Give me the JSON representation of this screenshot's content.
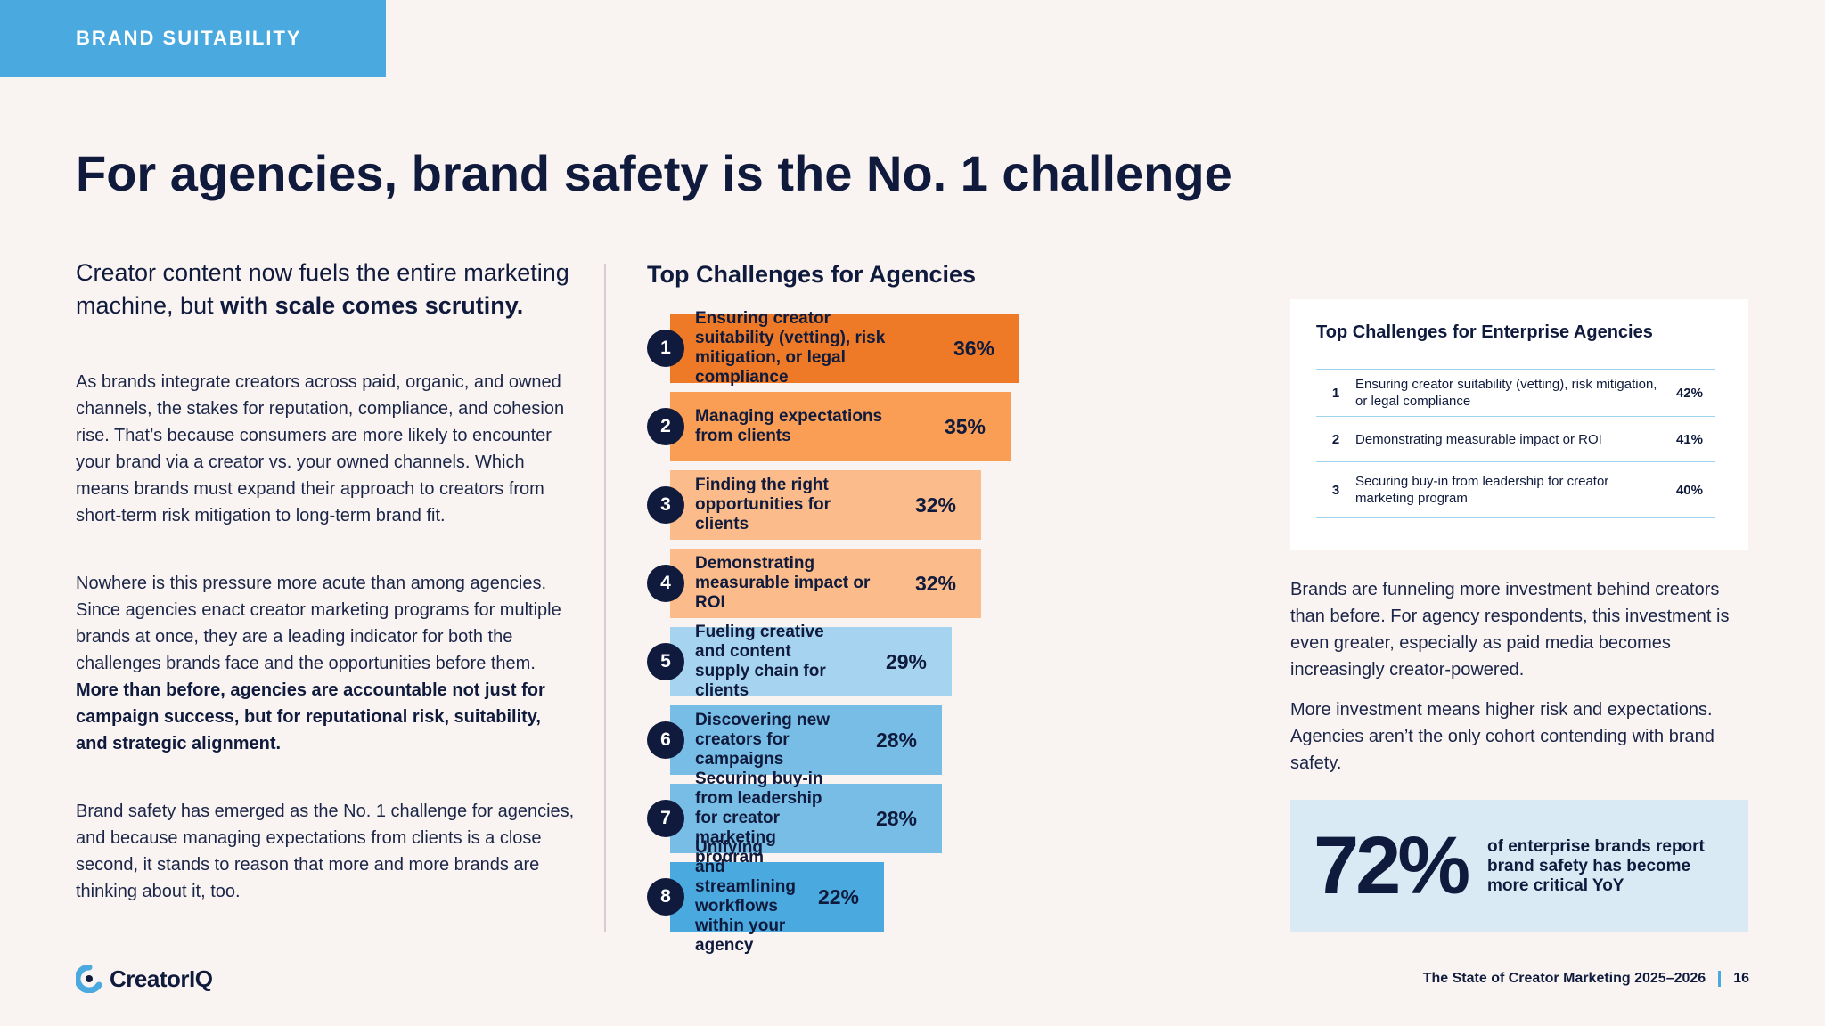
{
  "header": {
    "tag": "BRAND SUITABILITY",
    "title": "For agencies, brand safety is the No. 1 challenge"
  },
  "left": {
    "intro_plain": "Creator content now fuels the entire marketing machine, but ",
    "intro_bold": "with scale comes scrutiny.",
    "para1": "As brands integrate creators across paid, organic, and owned channels, the stakes for reputation, compliance, and cohesion rise. That’s because consumers are more likely to encounter your brand via a creator vs. your owned channels. Which means brands must expand their approach to creators from short-term risk mitigation to long-term brand fit.",
    "para2_plain": "Nowhere is this pressure more acute than among agencies. Since agencies enact creator marketing programs for multiple brands at once, they are a leading indicator for both the challenges brands face and the opportunities before them. ",
    "para2_bold": "More than before, agencies are accountable not just for campaign success, but for reputational risk, suitability, and strategic alignment.",
    "para3": "Brand safety has emerged as the No. 1 challenge for agencies, and because managing expectations from clients is a close second, it stands to reason that more and more brands are thinking about it, too."
  },
  "chart_data": {
    "type": "bar",
    "orientation": "horizontal",
    "title": "Top Challenges for Agencies",
    "categories": [
      "Ensuring creator suitability (vetting), risk mitigation, or legal compliance",
      "Managing expectations from clients",
      "Finding the right opportunities for clients",
      "Demonstrating measurable impact or ROI",
      "Fueling creative and content supply chain for clients",
      "Discovering new creators for campaigns",
      "Securing buy-in from leadership for creator marketing program",
      "Unifying and streamlining workflows within your agency"
    ],
    "ranks": [
      "1",
      "2",
      "3",
      "4",
      "5",
      "6",
      "7",
      "8"
    ],
    "values": [
      36,
      35,
      32,
      32,
      29,
      28,
      28,
      22
    ],
    "value_labels": [
      "36%",
      "35%",
      "32%",
      "32%",
      "29%",
      "28%",
      "28%",
      "22%"
    ],
    "unit": "%",
    "colors": [
      "#ee7a27",
      "#f99e54",
      "#fbbb8a",
      "#fbbb8a",
      "#a6d4f0",
      "#78bde6",
      "#78bde6",
      "#4aa9df"
    ]
  },
  "enterprise": {
    "title": "Top Challenges for Enterprise Agencies",
    "rows": [
      {
        "rank": "1",
        "label": "Ensuring creator suitability (vetting), risk mitigation, or legal compliance",
        "value": "42%"
      },
      {
        "rank": "2",
        "label": "Demonstrating measurable impact or ROI",
        "value": "41%"
      },
      {
        "rank": "3",
        "label": "Securing buy-in from leadership for creator marketing program",
        "value": "40%"
      }
    ]
  },
  "right": {
    "para1": "Brands are funneling more investment behind creators than before. For agency respondents, this investment is even greater, especially as paid media becomes increasingly  creator-powered.",
    "para2": "More investment means higher risk and expectations. Agencies aren’t the only cohort contending with brand safety.",
    "stat_value": "72%",
    "stat_text": "of enterprise brands report brand safety has become more critical YoY"
  },
  "footer": {
    "logo": "CreatorIQ",
    "report": "The State of Creator Marketing 2025–2026",
    "page": "16"
  }
}
